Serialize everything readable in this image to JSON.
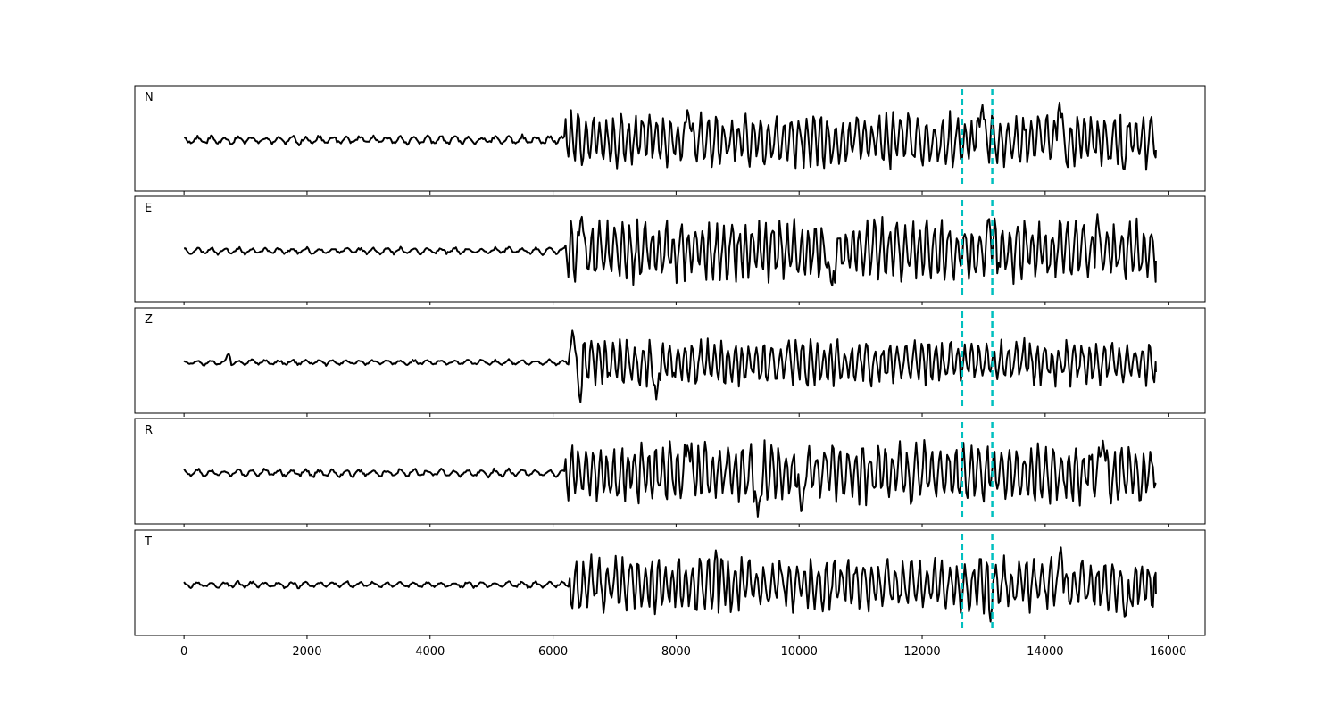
{
  "chart_data": {
    "type": "line",
    "layout": "stacked-panels",
    "xlim": [
      -800,
      16600
    ],
    "xticks": [
      "0",
      "2000",
      "4000",
      "6000",
      "8000",
      "10000",
      "12000",
      "14000",
      "16000"
    ],
    "xtick_values": [
      0,
      2000,
      4000,
      6000,
      8000,
      10000,
      12000,
      14000,
      16000
    ],
    "sample_range": [
      0,
      15800
    ],
    "trace_color": "#000000",
    "pick_color": "#00bfbf",
    "pick_lines": [
      12650,
      13140
    ],
    "panels": [
      {
        "label": "N",
        "seed": 11,
        "pre_noise": 0.08,
        "post_amp": 0.62,
        "onset": 6200,
        "spikes": [
          {
            "x": 12975,
            "y": 0.78
          },
          {
            "x": 14230,
            "y": 0.82
          },
          {
            "x": 15280,
            "y": -0.72
          },
          {
            "x": 8190,
            "y": 0.68
          }
        ]
      },
      {
        "label": "E",
        "seed": 23,
        "pre_noise": 0.06,
        "post_amp": 0.7,
        "onset": 6200,
        "spikes": [
          {
            "x": 13080,
            "y": 0.78
          },
          {
            "x": 10530,
            "y": -0.82
          },
          {
            "x": 6460,
            "y": 0.8
          },
          {
            "x": 14850,
            "y": 0.74
          }
        ]
      },
      {
        "label": "Z",
        "seed": 37,
        "pre_noise": 0.05,
        "post_amp": 0.52,
        "onset": 6250,
        "spikes": [
          {
            "x": 6440,
            "y": -0.9
          },
          {
            "x": 6320,
            "y": 0.72
          },
          {
            "x": 7680,
            "y": -0.78
          },
          {
            "x": 720,
            "y": 0.2
          }
        ]
      },
      {
        "label": "R",
        "seed": 51,
        "pre_noise": 0.07,
        "post_amp": 0.68,
        "onset": 6200,
        "spikes": [
          {
            "x": 9330,
            "y": -0.92
          },
          {
            "x": 14940,
            "y": 0.68
          },
          {
            "x": 10040,
            "y": -0.9
          },
          {
            "x": 8190,
            "y": 0.62
          }
        ]
      },
      {
        "label": "T",
        "seed": 67,
        "pre_noise": 0.06,
        "post_amp": 0.62,
        "onset": 6250,
        "spikes": [
          {
            "x": 13110,
            "y": -0.78
          },
          {
            "x": 14250,
            "y": 0.84
          },
          {
            "x": 15300,
            "y": -0.78
          },
          {
            "x": 8650,
            "y": 0.75
          }
        ]
      }
    ]
  }
}
